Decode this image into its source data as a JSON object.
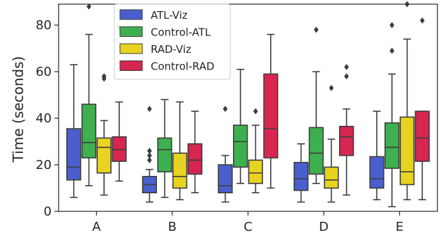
{
  "chart_data": {
    "type": "box",
    "ylabel": "Time (seconds)",
    "xlabel": "",
    "categories": [
      "A",
      "B",
      "C",
      "D",
      "E"
    ],
    "ylim": [
      0,
      89
    ],
    "yticks": [
      0,
      20,
      40,
      60,
      80
    ],
    "legend_position": "top-left",
    "series": [
      {
        "name": "ATL-Viz",
        "color": "#4a5fcf",
        "boxes": [
          {
            "whislo": 6,
            "q1": 13.5,
            "med": 19,
            "q3": 35.5,
            "whishi": 63,
            "fliers": []
          },
          {
            "whislo": 4,
            "q1": 8,
            "med": 11.5,
            "q3": 15,
            "whishi": 18,
            "fliers": [
              22,
              24,
              26,
              44
            ]
          },
          {
            "whislo": 4,
            "q1": 8,
            "med": 11,
            "q3": 20,
            "whishi": 24,
            "fliers": [
              44
            ]
          },
          {
            "whislo": 4,
            "q1": 9,
            "med": 14,
            "q3": 21,
            "whishi": 29,
            "fliers": []
          },
          {
            "whislo": 5,
            "q1": 10,
            "med": 14,
            "q3": 23.5,
            "whishi": 43,
            "fliers": []
          }
        ]
      },
      {
        "name": "Control-ATL",
        "color": "#3fb04f",
        "boxes": [
          {
            "whislo": 11,
            "q1": 23,
            "med": 29.5,
            "q3": 46,
            "whishi": 76,
            "fliers": [
              88
            ]
          },
          {
            "whislo": 6,
            "q1": 17,
            "med": 26.5,
            "q3": 31.5,
            "whishi": 48,
            "fliers": []
          },
          {
            "whislo": 12,
            "q1": 19,
            "med": 30,
            "q3": 37,
            "whishi": 61,
            "fliers": []
          },
          {
            "whislo": 12,
            "q1": 16,
            "med": 25,
            "q3": 36,
            "whishi": 60,
            "fliers": [
              78
            ]
          },
          {
            "whislo": 2,
            "q1": 18.5,
            "med": 27.5,
            "q3": 38,
            "whishi": 59,
            "fliers": [
              69,
              80
            ]
          }
        ]
      },
      {
        "name": "RAD-Viz",
        "color": "#e8d320",
        "boxes": [
          {
            "whislo": 7,
            "q1": 16.5,
            "med": 27.5,
            "q3": 31.5,
            "whishi": 39,
            "fliers": [
              57,
              58
            ]
          },
          {
            "whislo": 5,
            "q1": 10,
            "med": 15,
            "q3": 25,
            "whishi": 47,
            "fliers": []
          },
          {
            "whislo": 8,
            "q1": 12,
            "med": 16.5,
            "q3": 22,
            "whishi": 37,
            "fliers": [
              43
            ]
          },
          {
            "whislo": 4,
            "q1": 10,
            "med": 13.5,
            "q3": 19,
            "whishi": 31,
            "fliers": [
              53
            ]
          },
          {
            "whislo": 5,
            "q1": 11.5,
            "med": 17,
            "q3": 40.5,
            "whishi": 74,
            "fliers": [
              89
            ]
          }
        ]
      },
      {
        "name": "Control-RAD",
        "color": "#d72650",
        "boxes": [
          {
            "whislo": 13,
            "q1": 21.5,
            "med": 26.5,
            "q3": 32,
            "whishi": 47,
            "fliers": [
              79
            ]
          },
          {
            "whislo": 8,
            "q1": 16,
            "med": 22,
            "q3": 29,
            "whishi": 43,
            "fliers": []
          },
          {
            "whislo": 10,
            "q1": 23,
            "med": 35.5,
            "q3": 59,
            "whishi": 76,
            "fliers": []
          },
          {
            "whislo": 7,
            "q1": 24,
            "med": 32,
            "q3": 36.5,
            "whishi": 44,
            "fliers": [
              58,
              62
            ]
          },
          {
            "whislo": 5,
            "q1": 21.5,
            "med": 31.5,
            "q3": 43,
            "whishi": 43,
            "fliers": [
              82
            ]
          }
        ]
      }
    ]
  }
}
